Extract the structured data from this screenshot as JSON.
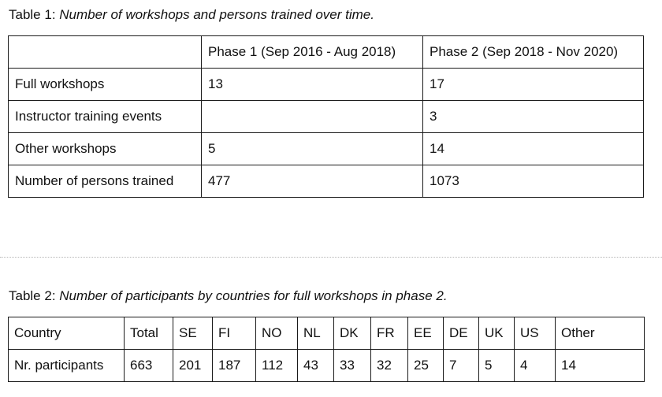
{
  "table1": {
    "caption_prefix": "Table 1: ",
    "caption_title": "Number of workshops and persons trained over time.",
    "header": [
      "",
      "Phase 1 (Sep 2016 - Aug 2018)",
      "Phase 2 (Sep 2018 - Nov 2020)"
    ],
    "rows": [
      [
        "Full workshops",
        "13",
        "17"
      ],
      [
        "Instructor training events",
        "",
        "3"
      ],
      [
        "Other workshops",
        "5",
        "14"
      ],
      [
        "Number of persons trained",
        "477",
        "1073"
      ]
    ]
  },
  "table2": {
    "caption_prefix": "Table 2: ",
    "caption_title": "Number of participants by countries for full workshops in phase 2.",
    "header": [
      "Country",
      "Total",
      "SE",
      "FI",
      "NO",
      "NL",
      "DK",
      "FR",
      "EE",
      "DE",
      "UK",
      "US",
      "Other"
    ],
    "rows": [
      [
        "Nr. participants",
        "663",
        "201",
        "187",
        "112",
        "43",
        "33",
        "32",
        "25",
        "7",
        "5",
        "4",
        "14"
      ]
    ]
  }
}
